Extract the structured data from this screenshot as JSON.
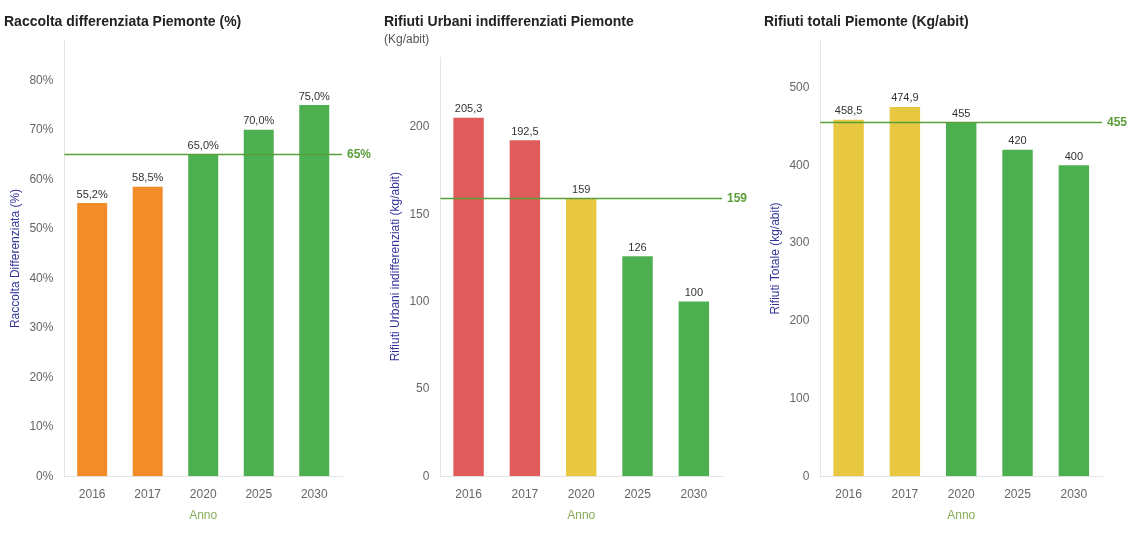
{
  "chart_data": [
    {
      "type": "bar",
      "title": "Raccolta differenziata Piemonte (%)",
      "xlabel": "Anno",
      "ylabel": "Raccolta Differenziata (%)",
      "categories": [
        "2016",
        "2017",
        "2020",
        "2025",
        "2030"
      ],
      "values": [
        55.2,
        58.5,
        65.0,
        70.0,
        75.0
      ],
      "value_labels": [
        "55,2%",
        "58,5%",
        "65,0%",
        "70,0%",
        "75,0%"
      ],
      "colors": [
        "#F28C28",
        "#F28C28",
        "#4caf50",
        "#4caf50",
        "#4caf50"
      ],
      "ylim": [
        0,
        88
      ],
      "yticks": [
        {
          "value": 0,
          "label": "0%"
        },
        {
          "value": 10,
          "label": "10%"
        },
        {
          "value": 20,
          "label": "20%"
        },
        {
          "value": 30,
          "label": "30%"
        },
        {
          "value": 40,
          "label": "40%"
        },
        {
          "value": 50,
          "label": "50%"
        },
        {
          "value": 60,
          "label": "60%"
        },
        {
          "value": 70,
          "label": "70%"
        },
        {
          "value": 80,
          "label": "80%"
        }
      ],
      "annotations": [
        {
          "text": "65%",
          "y": 65.0,
          "color": "#5a9e3a"
        }
      ],
      "data_labels": true,
      "grid": false,
      "legend": false
    },
    {
      "type": "bar",
      "title": "Rifiuti Urbani indifferenziati Piemonte",
      "subtitle": "(Kg/abit)",
      "xlabel": "Anno",
      "ylabel": "Rifiuti Urbani indifferenziati (kg/abit)",
      "categories": [
        "2016",
        "2017",
        "2020",
        "2025",
        "2030"
      ],
      "values": [
        205.3,
        192.5,
        159,
        126,
        100
      ],
      "value_labels": [
        "205,3",
        "192,5",
        "159",
        "126",
        "100"
      ],
      "colors": [
        "#e05c5c",
        "#e05c5c",
        "#e8c840",
        "#4caf50",
        "#4caf50"
      ],
      "ylim": [
        0,
        240
      ],
      "yticks": [
        0,
        50,
        100,
        150,
        200
      ],
      "annotations": [
        {
          "text": "159",
          "y": 159,
          "color": "#5a9e3a"
        }
      ],
      "data_labels": true,
      "grid": false,
      "legend": false
    },
    {
      "type": "bar",
      "title": "Rifiuti totali Piemonte (Kg/abit)",
      "xlabel": "Anno",
      "ylabel": "Rifiuti Totale (kg/abit)",
      "categories": [
        "2016",
        "2017",
        "2020",
        "2025",
        "2030"
      ],
      "values": [
        458.5,
        474.9,
        455,
        420,
        400
      ],
      "value_labels": [
        "458,5",
        "474,9",
        "455",
        "420",
        "400"
      ],
      "colors": [
        "#e8c840",
        "#e8c840",
        "#4caf50",
        "#4caf50",
        "#4caf50"
      ],
      "ylim": [
        0,
        560
      ],
      "yticks": [
        0,
        100,
        200,
        300,
        400,
        500
      ],
      "annotations": [
        {
          "text": "455",
          "y": 455,
          "color": "#5a9e3a"
        }
      ],
      "data_labels": true,
      "grid": false,
      "legend": false
    }
  ]
}
